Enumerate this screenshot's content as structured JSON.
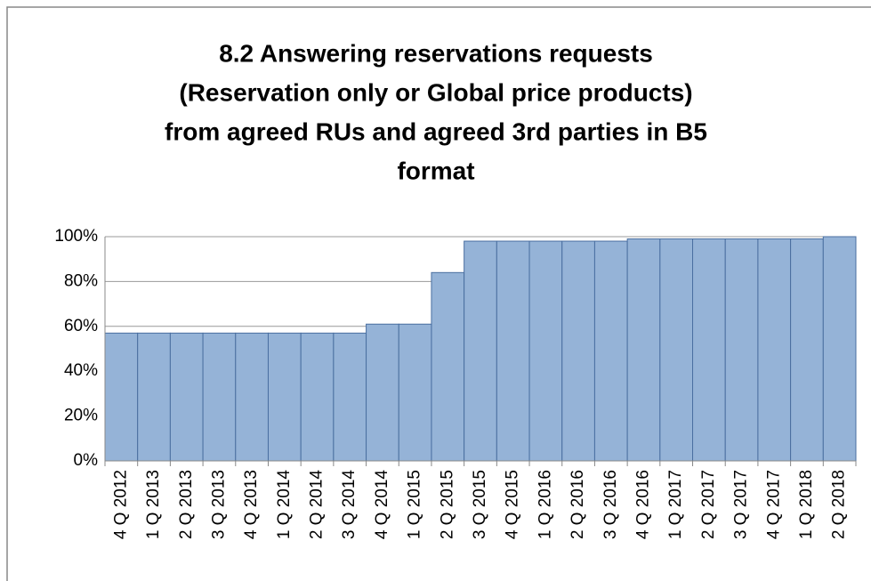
{
  "chart_data": {
    "type": "bar",
    "title": [
      "8.2 Answering reservations requests",
      "(Reservation only or Global price products)",
      "from agreed RUs and agreed 3rd parties in B5",
      "format"
    ],
    "categories": [
      "4 Q 2012",
      "1 Q 2013",
      "2 Q 2013",
      "3 Q 2013",
      "4 Q 2013",
      "1 Q 2014",
      "2 Q 2014",
      "3 Q 2014",
      "4 Q 2014",
      "1 Q 2015",
      "2 Q 2015",
      "3 Q 2015",
      "4 Q 2015",
      "1 Q 2016",
      "2 Q 2016",
      "3 Q 2016",
      "4 Q 2016",
      "1 Q 2017",
      "2 Q 2017",
      "3 Q 2017",
      "4 Q 2017",
      "1 Q 2018",
      "2 Q 2018"
    ],
    "values": [
      57,
      57,
      57,
      57,
      57,
      57,
      57,
      57,
      61,
      61,
      84,
      98,
      98,
      98,
      98,
      98,
      99,
      99,
      99,
      99,
      99,
      99,
      100
    ],
    "color": "#95b3d7",
    "ylim": [
      0,
      100
    ],
    "yticks": [
      {
        "value": 0,
        "label": "0%"
      },
      {
        "value": 20,
        "label": "20%"
      },
      {
        "value": 40,
        "label": "40%"
      },
      {
        "value": 60,
        "label": "60%"
      },
      {
        "value": 80,
        "label": "80%"
      },
      {
        "value": 100,
        "label": "100%"
      }
    ],
    "grid": true
  }
}
